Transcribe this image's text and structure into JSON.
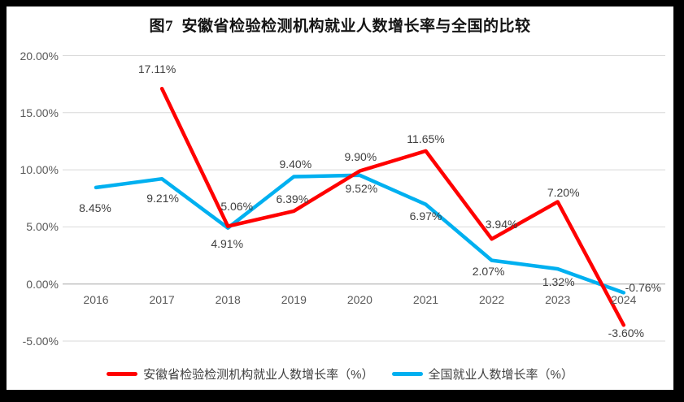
{
  "chart_data": {
    "type": "line",
    "title": "图7  安徽省检验检测机构就业人数增长率与全国的比较",
    "categories": [
      "2016",
      "2017",
      "2018",
      "2019",
      "2020",
      "2021",
      "2022",
      "2023",
      "2024"
    ],
    "series": [
      {
        "name": "安徽省检验检测机构就业人数增长率（%）",
        "color": "#FF0000",
        "values": [
          null,
          17.11,
          5.06,
          6.39,
          9.9,
          11.65,
          3.94,
          7.2,
          -3.6
        ],
        "point_labels": [
          null,
          "17.11%",
          "5.06%",
          "6.39%",
          "9.90%",
          "11.65%",
          "3.94%",
          "7.20%",
          "-3.60%"
        ],
        "label_offsets": [
          null,
          [
            -6,
            -24
          ],
          [
            11,
            -25
          ],
          [
            -2,
            -15
          ],
          [
            1,
            -18
          ],
          [
            0,
            -15
          ],
          [
            12,
            -18
          ],
          [
            7,
            -11
          ],
          [
            3,
            10
          ]
        ]
      },
      {
        "name": "全国就业人数增长率（%）",
        "color": "#00B0F0",
        "values": [
          8.45,
          9.21,
          4.91,
          9.4,
          9.52,
          6.97,
          2.07,
          1.32,
          -0.76
        ],
        "point_labels": [
          "8.45%",
          "9.21%",
          "4.91%",
          "9.40%",
          "9.52%",
          "6.97%",
          "2.07%",
          "1.32%",
          "-0.76%"
        ],
        "label_offsets": [
          [
            -1,
            25
          ],
          [
            1,
            24
          ],
          [
            -1,
            19
          ],
          [
            2,
            -16
          ],
          [
            2,
            16
          ],
          [
            0,
            14
          ],
          [
            -4,
            13
          ],
          [
            1,
            16
          ],
          [
            24,
            -6
          ]
        ]
      }
    ],
    "y_axis": {
      "min": -5,
      "max": 20,
      "ticks": [
        {
          "value": 20,
          "label": "20.00%"
        },
        {
          "value": 15,
          "label": "15.00%"
        },
        {
          "value": 10,
          "label": "10.00%"
        },
        {
          "value": 5,
          "label": "5.00%"
        },
        {
          "value": 0,
          "label": "0.00%"
        },
        {
          "value": -5,
          "label": "-5.00%"
        }
      ]
    },
    "grid": true,
    "legend_position": "bottom",
    "colors": {
      "gridline": "#D9D9D9",
      "zero_line": "#BFBFBF",
      "axis_text": "#595959",
      "data_label_text": "#3F3F3F",
      "legend_text": "#404040",
      "surface": "#FFFFFF",
      "frame": "#000000"
    }
  }
}
